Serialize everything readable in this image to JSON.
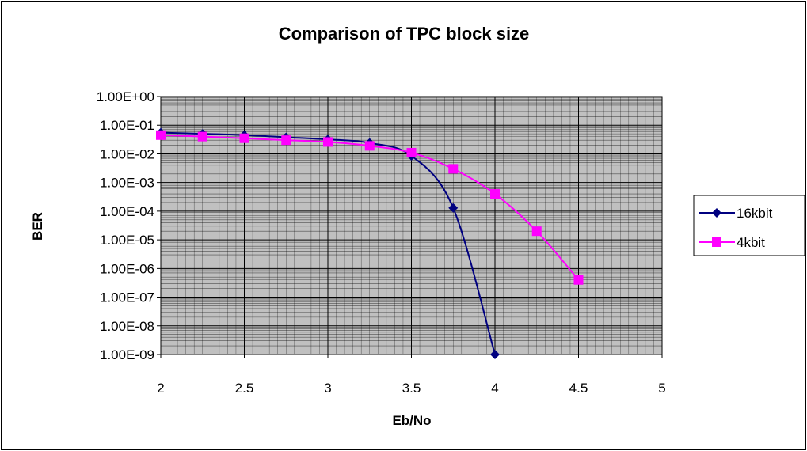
{
  "chart_data": {
    "type": "line",
    "title": "Comparison of TPC block size",
    "xlabel": "Eb/No",
    "ylabel": "BER",
    "xlim": [
      2,
      5
    ],
    "ylim": [
      1e-09,
      1
    ],
    "yscale": "log",
    "grid": true,
    "legend_position": "right",
    "x_ticks": [
      "2",
      "2.5",
      "3",
      "3.5",
      "4",
      "4.5",
      "5"
    ],
    "y_ticks": [
      "1.00E+00",
      "1.00E-01",
      "1.00E-02",
      "1.00E-03",
      "1.00E-04",
      "1.00E-05",
      "1.00E-06",
      "1.00E-07",
      "1.00E-08",
      "1.00E-09"
    ],
    "series": [
      {
        "name": "16kbit",
        "color": "#000080",
        "marker": "diamond",
        "x": [
          2,
          2.25,
          2.5,
          2.75,
          3,
          3.25,
          3.5,
          3.75,
          4
        ],
        "y": [
          0.055,
          0.05,
          0.045,
          0.038,
          0.032,
          0.024,
          0.0085,
          0.00013,
          1e-09
        ]
      },
      {
        "name": "4kbit",
        "color": "#ff00ff",
        "marker": "square",
        "x": [
          2,
          2.25,
          2.5,
          2.75,
          3,
          3.25,
          3.5,
          3.75,
          4,
          4.25,
          4.5
        ],
        "y": [
          0.045,
          0.04,
          0.035,
          0.03,
          0.026,
          0.019,
          0.011,
          0.003,
          0.0004,
          2e-05,
          4e-07
        ]
      }
    ],
    "plot_background": "#c0c0c0"
  }
}
